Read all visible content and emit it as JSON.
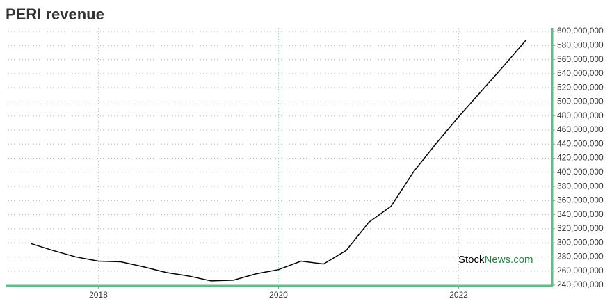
{
  "chart_data": {
    "type": "line",
    "title": "PERI revenue",
    "x": [
      2017.25,
      2017.5,
      2017.75,
      2018,
      2018.25,
      2018.5,
      2018.75,
      2019,
      2019.25,
      2019.5,
      2019.75,
      2020,
      2020.25,
      2020.5,
      2020.75,
      2021,
      2021.25,
      2021.5,
      2021.75,
      2022,
      2022.25,
      2022.5,
      2022.75
    ],
    "series": [
      {
        "name": "PERI revenue",
        "color": "#000000",
        "values": [
          299000000,
          289000000,
          280000000,
          274000000,
          273000000,
          266000000,
          258000000,
          253000000,
          246000000,
          247000000,
          256000000,
          262000000,
          274000000,
          270000000,
          289000000,
          329000000,
          352000000,
          401000000,
          441000000,
          479000000,
          515000000,
          551000000,
          588000000
        ]
      }
    ],
    "xlim": [
      2016.97,
      2023.03
    ],
    "xticks": [
      2018,
      2020,
      2022
    ],
    "ylim": [
      240000000,
      605000000
    ],
    "yticks": [
      {
        "value": 240000000,
        "label": "240,000,000"
      },
      {
        "value": 260000000,
        "label": "260,000,000"
      },
      {
        "value": 280000000,
        "label": "280,000,000"
      },
      {
        "value": 300000000,
        "label": "300,000,000"
      },
      {
        "value": 320000000,
        "label": "320,000,000"
      },
      {
        "value": 340000000,
        "label": "340,000,000"
      },
      {
        "value": 360000000,
        "label": "360,000,000"
      },
      {
        "value": 380000000,
        "label": "380,000,000"
      },
      {
        "value": 400000000,
        "label": "400,000,000"
      },
      {
        "value": 420000000,
        "label": "420,000,000"
      },
      {
        "value": 440000000,
        "label": "440,000,000"
      },
      {
        "value": 460000000,
        "label": "460,000,000"
      },
      {
        "value": 480000000,
        "label": "480,000,000"
      },
      {
        "value": 500000000,
        "label": "500,000,000"
      },
      {
        "value": 520000000,
        "label": "520,000,000"
      },
      {
        "value": 540000000,
        "label": "540,000,000"
      },
      {
        "value": 560000000,
        "label": "560,000,000"
      },
      {
        "value": 580000000,
        "label": "580,000,000"
      },
      {
        "value": 600000000,
        "label": "600,000,000"
      }
    ],
    "grid": true,
    "axis_color": "#5cbf85",
    "watermark": [
      "Stock",
      "News.com"
    ]
  }
}
